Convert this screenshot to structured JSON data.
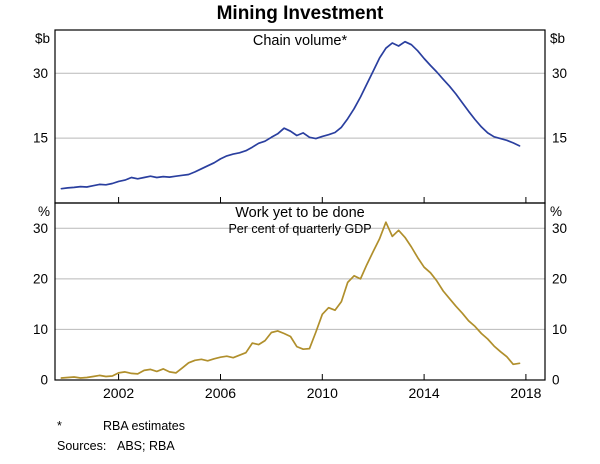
{
  "chart_data": {
    "type": "line",
    "title": "Mining Investment",
    "x_range": [
      1999.5,
      2018.75
    ],
    "x_ticks": [
      2002,
      2006,
      2010,
      2014,
      2018
    ],
    "grid": "horizontal-only",
    "legend": "none",
    "panels": [
      {
        "title": "Chain volume*",
        "unit": "$b",
        "y_range": [
          0,
          40
        ],
        "y_ticks": [
          15,
          30
        ],
        "series": [
          {
            "name": "Mining investment (chain volume)",
            "color": "#2a3f9f",
            "x": [
              1999.75,
              2000,
              2000.25,
              2000.5,
              2000.75,
              2001,
              2001.25,
              2001.5,
              2001.75,
              2002,
              2002.25,
              2002.5,
              2002.75,
              2003,
              2003.25,
              2003.5,
              2003.75,
              2004,
              2004.25,
              2004.5,
              2004.75,
              2005,
              2005.25,
              2005.5,
              2005.75,
              2006,
              2006.25,
              2006.5,
              2006.75,
              2007,
              2007.25,
              2007.5,
              2007.75,
              2008,
              2008.25,
              2008.5,
              2008.75,
              2009,
              2009.25,
              2009.5,
              2009.75,
              2010,
              2010.25,
              2010.5,
              2010.75,
              2011,
              2011.25,
              2011.5,
              2011.75,
              2012,
              2012.25,
              2012.5,
              2012.75,
              2013,
              2013.25,
              2013.5,
              2013.75,
              2014,
              2014.25,
              2014.5,
              2014.75,
              2015,
              2015.25,
              2015.5,
              2015.75,
              2016,
              2016.25,
              2016.5,
              2016.75,
              2017,
              2017.25,
              2017.5,
              2017.75
            ],
            "y": [
              3.3,
              3.5,
              3.6,
              3.8,
              3.7,
              4.0,
              4.3,
              4.2,
              4.5,
              5.0,
              5.3,
              5.9,
              5.6,
              5.9,
              6.2,
              5.9,
              6.1,
              6.0,
              6.2,
              6.4,
              6.6,
              7.2,
              7.9,
              8.6,
              9.3,
              10.2,
              10.9,
              11.3,
              11.6,
              12.1,
              12.9,
              13.8,
              14.3,
              15.2,
              16.0,
              17.3,
              16.6,
              15.6,
              16.2,
              15.2,
              14.9,
              15.4,
              15.8,
              16.3,
              17.5,
              19.5,
              21.8,
              24.5,
              27.5,
              30.5,
              33.5,
              35.8,
              37.0,
              36.3,
              37.3,
              36.6,
              35.2,
              33.4,
              31.8,
              30.3,
              28.6,
              27.0,
              25.2,
              23.2,
              21.2,
              19.3,
              17.6,
              16.2,
              15.3,
              14.9,
              14.5,
              13.9,
              13.2
            ]
          }
        ]
      },
      {
        "title": "Work yet to be done",
        "subtitle": "Per cent of quarterly GDP",
        "unit": "%",
        "y_range": [
          0,
          35
        ],
        "y_ticks": [
          0,
          10,
          20,
          30
        ],
        "series": [
          {
            "name": "Work yet to be done (per cent of quarterly GDP)",
            "color": "#b08f2c",
            "x": [
              1999.75,
              2000,
              2000.25,
              2000.5,
              2000.75,
              2001,
              2001.25,
              2001.5,
              2001.75,
              2002,
              2002.25,
              2002.5,
              2002.75,
              2003,
              2003.25,
              2003.5,
              2003.75,
              2004,
              2004.25,
              2004.5,
              2004.75,
              2005,
              2005.25,
              2005.5,
              2005.75,
              2006,
              2006.25,
              2006.5,
              2006.75,
              2007,
              2007.25,
              2007.5,
              2007.75,
              2008,
              2008.25,
              2008.5,
              2008.75,
              2009,
              2009.25,
              2009.5,
              2009.75,
              2010,
              2010.25,
              2010.5,
              2010.75,
              2011,
              2011.25,
              2011.5,
              2011.75,
              2012,
              2012.25,
              2012.5,
              2012.75,
              2013,
              2013.25,
              2013.5,
              2013.75,
              2014,
              2014.25,
              2014.5,
              2014.75,
              2015,
              2015.25,
              2015.5,
              2015.75,
              2016,
              2016.25,
              2016.5,
              2016.75,
              2017,
              2017.25,
              2017.5,
              2017.75
            ],
            "y": [
              0.4,
              0.5,
              0.6,
              0.4,
              0.5,
              0.7,
              0.9,
              0.7,
              0.8,
              1.4,
              1.6,
              1.3,
              1.2,
              1.9,
              2.1,
              1.7,
              2.2,
              1.6,
              1.4,
              2.4,
              3.4,
              3.9,
              4.1,
              3.8,
              4.2,
              4.5,
              4.7,
              4.4,
              4.9,
              5.4,
              7.3,
              7.0,
              7.8,
              9.4,
              9.7,
              9.2,
              8.6,
              6.6,
              6.1,
              6.2,
              9.5,
              13.0,
              14.3,
              13.8,
              15.5,
              19.3,
              20.6,
              20.0,
              22.8,
              25.4,
              27.9,
              31.2,
              28.4,
              29.6,
              28.2,
              26.3,
              24.2,
              22.3,
              21.2,
              19.6,
              17.6,
              16.1,
              14.6,
              13.2,
              11.7,
              10.6,
              9.2,
              8.1,
              6.7,
              5.6,
              4.6,
              3.1,
              3.3
            ]
          }
        ]
      }
    ]
  },
  "footnotes": {
    "marker": "*",
    "note": "RBA estimates",
    "sources_label": "Sources:",
    "sources": "ABS; RBA"
  }
}
